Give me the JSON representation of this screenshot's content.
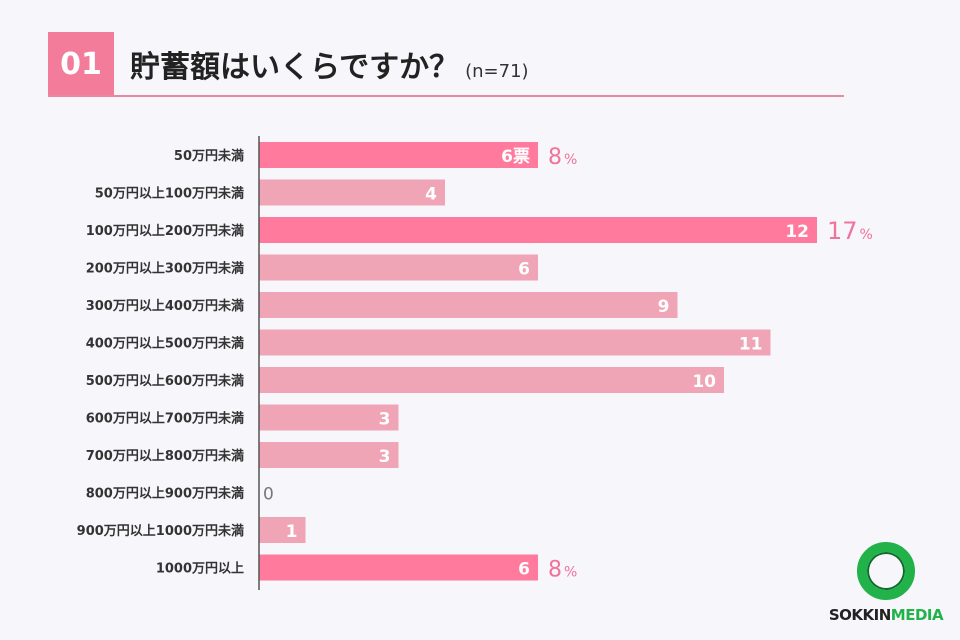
{
  "header": {
    "number": "01",
    "title": "貯蓄額はいくらですか？",
    "sample": "(n=71)"
  },
  "logo": {
    "part1": "SOKKIN",
    "part2": "MEDIA"
  },
  "colors": {
    "bar_highlight": "#ff7a9d",
    "bar_normal": "#efa5b5",
    "pct_text": "#f0739a",
    "axis": "#555555"
  },
  "chart_data": {
    "type": "bar",
    "orientation": "horizontal",
    "categories": [
      "50万円未満",
      "50万円以上100万円未満",
      "100万円以上200万円未満",
      "200万円以上300万円未満",
      "300万円以上400万円未満",
      "400万円以上500万円未満",
      "500万円以上600万円未満",
      "600万円以上700万円未満",
      "700万円以上800万円未満",
      "800万円以上900万円未満",
      "900万円以上1000万円未満",
      "1000万円以上"
    ],
    "values": [
      6,
      4,
      12,
      6,
      9,
      11,
      10,
      3,
      3,
      0,
      1,
      6
    ],
    "value_labels": [
      "6票",
      "4",
      "12",
      "6",
      "9",
      "11",
      "10",
      "3",
      "3",
      "0",
      "1",
      "6"
    ],
    "percent_labels": [
      "8",
      "",
      "17",
      "",
      "",
      "",
      "",
      "",
      "",
      "",
      "",
      "8"
    ],
    "percent_unit": "%",
    "highlighted": [
      true,
      false,
      true,
      false,
      false,
      false,
      false,
      false,
      false,
      false,
      false,
      true
    ],
    "grid": false
  }
}
